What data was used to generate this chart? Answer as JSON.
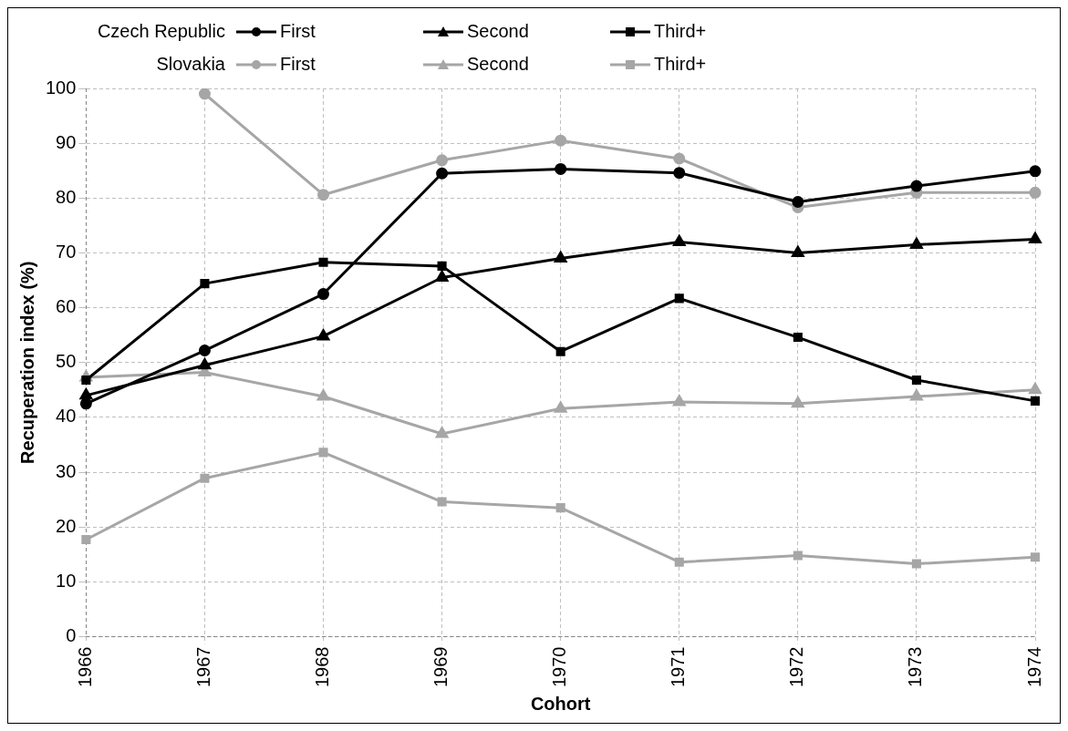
{
  "chart_data": {
    "type": "line",
    "xlabel": "Cohort",
    "ylabel": "Recuperation index (%)",
    "categories": [
      "1966",
      "1967",
      "1968",
      "1969",
      "1970",
      "1971",
      "1972",
      "1973",
      "1974"
    ],
    "ylim": [
      0,
      100
    ],
    "yticks": [
      0,
      10,
      20,
      30,
      40,
      50,
      60,
      70,
      80,
      90,
      100
    ],
    "grid": true,
    "legend": "top",
    "annotations": [
      "Czech Republic",
      "Slovakia"
    ],
    "series": [
      {
        "name": "First",
        "color": "#000000",
        "marker": "circle",
        "values": [
          42.5,
          52.2,
          62.5,
          84.5,
          85.3,
          84.6,
          79.3,
          82.2,
          84.9
        ]
      },
      {
        "name": "Second",
        "color": "#000000",
        "marker": "triangle",
        "values": [
          44,
          49.5,
          54.8,
          65.5,
          69,
          72,
          70,
          71.5,
          72.5
        ]
      },
      {
        "name": "Third+",
        "color": "#000000",
        "marker": "square",
        "values": [
          46.8,
          64.4,
          68.3,
          67.6,
          52,
          61.7,
          54.6,
          46.8,
          43
        ]
      },
      {
        "name": "First",
        "color": "#a6a6a6",
        "marker": "circle",
        "values": [
          null,
          99,
          80.6,
          86.9,
          90.5,
          87.2,
          78.3,
          81,
          81
        ]
      },
      {
        "name": "Second",
        "color": "#a6a6a6",
        "marker": "triangle",
        "values": [
          47.3,
          48.2,
          43.8,
          37,
          41.6,
          42.8,
          42.5,
          43.8,
          45
        ]
      },
      {
        "name": "Third+",
        "color": "#a6a6a6",
        "marker": "square",
        "values": [
          17.7,
          28.9,
          33.6,
          24.6,
          23.5,
          13.6,
          14.8,
          13.3,
          14.5
        ]
      }
    ]
  }
}
